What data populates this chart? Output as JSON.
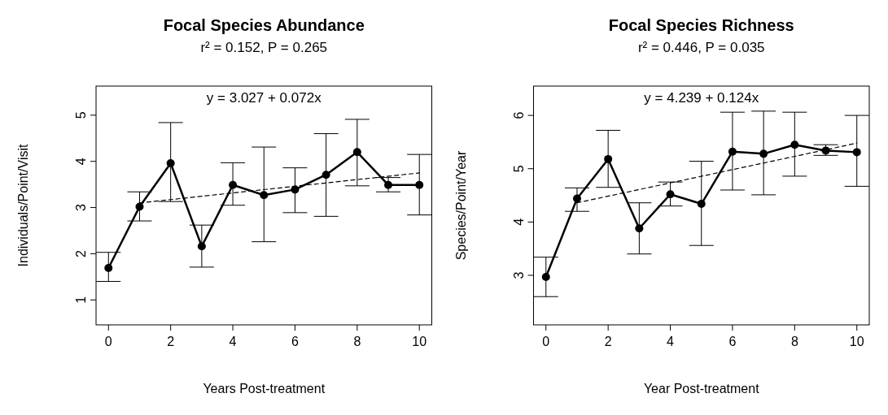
{
  "chart_data": [
    {
      "type": "line",
      "title": "Focal Species Abundance",
      "subtitle": "r² = 0.152, P = 0.265",
      "xlabel": "Years Post-treatment",
      "ylabel": "Individuals/Point/Visit",
      "annotations": [
        "y = 3.027 + 0.072x"
      ],
      "xlim": [
        -0.4,
        10.4
      ],
      "xticks": [
        0,
        2,
        4,
        6,
        8,
        10
      ],
      "ylim": [
        0.46,
        5.63
      ],
      "yticks": [
        1,
        2,
        3,
        4,
        5
      ],
      "grid": false,
      "series": [
        {
          "color": "#000000",
          "marker": "circle",
          "line_style": "solid",
          "x": [
            0,
            1,
            2,
            3,
            4,
            5,
            6,
            7,
            8,
            9,
            10
          ],
          "values": [
            1.69,
            3.02,
            3.96,
            2.16,
            3.49,
            3.27,
            3.39,
            3.71,
            4.2,
            3.49,
            3.49
          ],
          "errors": [
            [
              1.4,
              2.03
            ],
            [
              2.71,
              3.34
            ],
            [
              3.13,
              4.84
            ],
            [
              1.71,
              2.62
            ],
            [
              3.05,
              3.97
            ],
            [
              2.26,
              4.31
            ],
            [
              2.89,
              3.86
            ],
            [
              2.81,
              4.6
            ],
            [
              3.47,
              4.91
            ],
            [
              3.34,
              3.65
            ],
            [
              2.84,
              4.15
            ]
          ]
        },
        {
          "color": "#000000",
          "marker": "none",
          "line_style": "dashed",
          "x": [
            1,
            10
          ],
          "values": [
            3.1,
            3.75
          ]
        }
      ]
    },
    {
      "type": "line",
      "title": "Focal Species Richness",
      "subtitle": "r² = 0.446, P = 0.035",
      "xlabel": "Year Post-treatment",
      "ylabel": "Species/Point/Year",
      "annotations": [
        "y = 4.239 + 0.124x"
      ],
      "xlim": [
        -0.4,
        10.4
      ],
      "xticks": [
        0,
        2,
        4,
        6,
        8,
        10
      ],
      "ylim": [
        2.07,
        6.55
      ],
      "yticks": [
        3,
        4,
        5,
        6
      ],
      "grid": false,
      "series": [
        {
          "color": "#000000",
          "marker": "circle",
          "line_style": "solid",
          "x": [
            0,
            1,
            2,
            3,
            4,
            5,
            6,
            7,
            8,
            9,
            10
          ],
          "values": [
            2.97,
            4.44,
            5.18,
            3.88,
            4.52,
            4.34,
            5.32,
            5.28,
            5.45,
            5.34,
            5.31
          ],
          "errors": [
            [
              2.6,
              3.34
            ],
            [
              4.2,
              4.64
            ],
            [
              4.65,
              5.72
            ],
            [
              3.4,
              4.36
            ],
            [
              4.3,
              4.75
            ],
            [
              3.56,
              5.14
            ],
            [
              4.6,
              6.06
            ],
            [
              4.51,
              6.08
            ],
            [
              4.86,
              6.06
            ],
            [
              5.25,
              5.45
            ],
            [
              4.67,
              6.0
            ]
          ]
        },
        {
          "color": "#000000",
          "marker": "none",
          "line_style": "dashed",
          "x": [
            1,
            10
          ],
          "values": [
            4.36,
            5.48
          ]
        }
      ]
    }
  ]
}
